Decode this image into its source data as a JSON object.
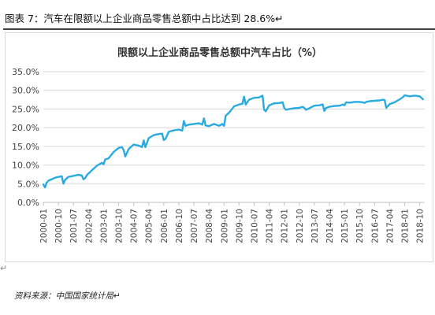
{
  "header": {
    "text": "图表 7：汽车在限额以上企业商品零售总额中占比达到 28.6%↵"
  },
  "footer": {
    "para_mark": "↵",
    "source": "资料来源：中国国家统计局↵"
  },
  "colors": {
    "line": "#29abe2",
    "grid": "#d9d9d9",
    "axis": "#bfbfbf"
  },
  "chart_data": {
    "type": "line",
    "title": "限额以上企业商品零售总额中汽车占比（%）",
    "xlabel": "",
    "ylabel": "",
    "ylim": [
      0,
      35
    ],
    "ytick_values": [
      0,
      5,
      10,
      15,
      20,
      25,
      30,
      35
    ],
    "ytick_labels": [
      "0.0%",
      "5.0%",
      "10.0%",
      "15.0%",
      "20.0%",
      "25.0%",
      "30.0%",
      "35.0%"
    ],
    "xtick_labels": [
      "2000-01",
      "2000-10",
      "2001-07",
      "2002-04",
      "2003-01",
      "2003-10",
      "2004-07",
      "2005-04",
      "2006-01",
      "2006-10",
      "2007-07",
      "2008-04",
      "2009-01",
      "2009-10",
      "2010-07",
      "2011-04",
      "2012-01",
      "2012-10",
      "2013-07",
      "2014-04",
      "2015-01",
      "2015-10",
      "2016-07",
      "2017-04",
      "2018-01",
      "2018-10"
    ],
    "grid": true,
    "legend": "none",
    "series": [
      {
        "name": "",
        "x": [
          "2000-01",
          "2000-02",
          "2000-03",
          "2000-04",
          "2000-06",
          "2000-08",
          "2000-10",
          "2000-12",
          "2001-01",
          "2001-02",
          "2001-04",
          "2001-07",
          "2001-10",
          "2001-12",
          "2002-01",
          "2002-02",
          "2002-03",
          "2002-06",
          "2002-09",
          "2002-12",
          "2003-01",
          "2003-02",
          "2003-04",
          "2003-07",
          "2003-10",
          "2003-12",
          "2004-01",
          "2004-02",
          "2004-04",
          "2004-07",
          "2004-10",
          "2004-12",
          "2005-01",
          "2005-02",
          "2005-04",
          "2005-07",
          "2005-10",
          "2005-12",
          "2006-01",
          "2006-02",
          "2006-04",
          "2006-07",
          "2006-10",
          "2006-12",
          "2007-01",
          "2007-02",
          "2007-04",
          "2007-07",
          "2007-10",
          "2007-12",
          "2008-01",
          "2008-02",
          "2008-04",
          "2008-07",
          "2008-10",
          "2008-12",
          "2009-01",
          "2009-02",
          "2009-04",
          "2009-07",
          "2009-10",
          "2009-12",
          "2010-01",
          "2010-02",
          "2010-04",
          "2010-07",
          "2010-10",
          "2010-12",
          "2011-01",
          "2011-02",
          "2011-04",
          "2011-07",
          "2011-10",
          "2011-12",
          "2012-01",
          "2012-02",
          "2012-04",
          "2012-07",
          "2012-10",
          "2012-12",
          "2013-01",
          "2013-02",
          "2013-04",
          "2013-07",
          "2013-10",
          "2013-12",
          "2014-01",
          "2014-02",
          "2014-04",
          "2014-07",
          "2014-10",
          "2014-12",
          "2015-01",
          "2015-02",
          "2015-04",
          "2015-07",
          "2015-10",
          "2015-12",
          "2016-01",
          "2016-02",
          "2016-04",
          "2016-07",
          "2016-10",
          "2016-12",
          "2017-01",
          "2017-02",
          "2017-04",
          "2017-07",
          "2017-10",
          "2017-12",
          "2018-01",
          "2018-02",
          "2018-04",
          "2018-07",
          "2018-10",
          "2018-12"
        ],
        "y": [
          4.8,
          4.0,
          5.3,
          5.8,
          6.2,
          6.6,
          6.8,
          7.0,
          5.0,
          6.0,
          6.8,
          7.1,
          7.4,
          7.2,
          6.2,
          6.5,
          7.3,
          8.6,
          9.8,
          10.6,
          10.2,
          11.5,
          11.8,
          13.5,
          14.6,
          14.8,
          14.0,
          12.3,
          14.3,
          15.5,
          15.2,
          14.8,
          16.6,
          14.8,
          17.2,
          18.0,
          18.3,
          18.4,
          16.7,
          17.0,
          18.9,
          19.3,
          19.5,
          19.2,
          21.8,
          20.5,
          20.8,
          21.0,
          21.2,
          20.8,
          22.5,
          20.6,
          20.4,
          21.0,
          20.5,
          21.0,
          20.5,
          23.2,
          24.0,
          25.7,
          26.2,
          26.4,
          28.3,
          26.2,
          27.5,
          28.0,
          28.1,
          28.6,
          24.8,
          24.4,
          26.0,
          26.5,
          26.6,
          26.8,
          25.3,
          24.8,
          25.0,
          25.2,
          25.3,
          25.6,
          25.3,
          24.8,
          25.2,
          25.9,
          26.0,
          26.2,
          24.5,
          25.3,
          25.6,
          25.8,
          25.9,
          26.2,
          26.0,
          26.8,
          26.7,
          26.9,
          26.9,
          26.8,
          26.6,
          26.9,
          27.1,
          27.2,
          27.3,
          27.5,
          27.4,
          25.3,
          26.3,
          26.8,
          27.6,
          28.2,
          28.7,
          28.6,
          28.4,
          28.6,
          28.4,
          27.6
        ]
      }
    ]
  }
}
